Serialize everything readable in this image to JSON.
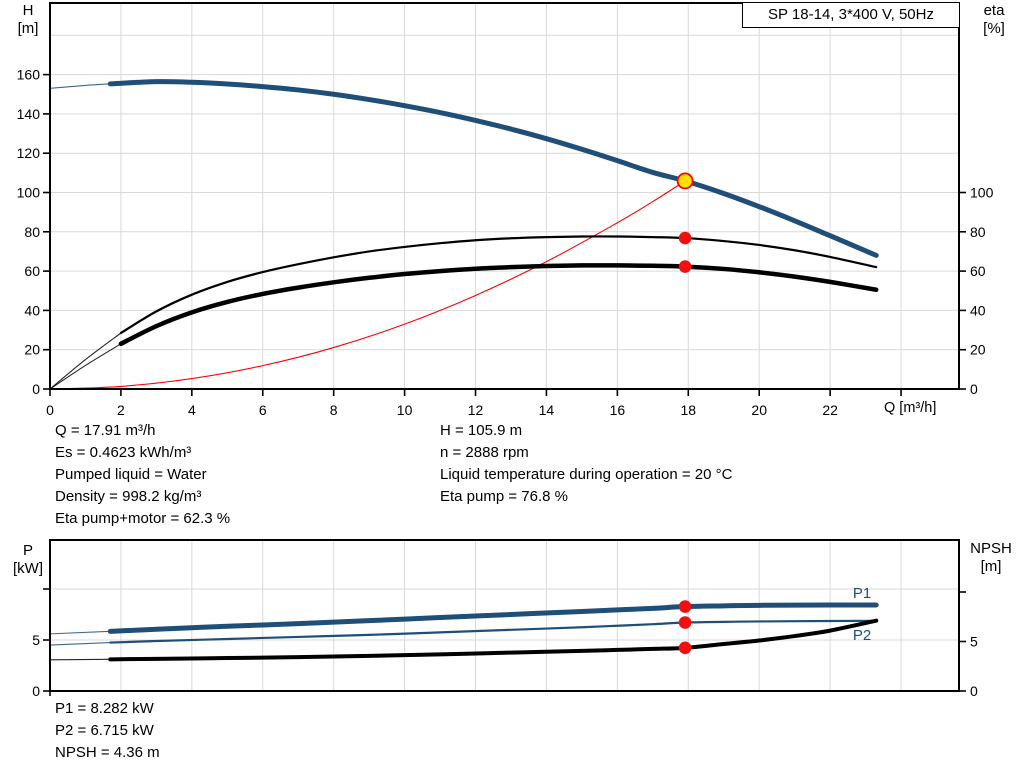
{
  "title_box": "SP 18-14, 3*400 V, 50Hz",
  "top_info": {
    "left": [
      "Q = 17.91 m³/h",
      "Es = 0.4623 kWh/m³",
      "Pumped liquid = Water",
      "Density = 998.2 kg/m³",
      "Eta pump+motor = 62.3 %"
    ],
    "right": [
      "H = 105.9 m",
      "n = 2888 rpm",
      "Liquid temperature during operation = 20 °C",
      "Eta pump = 76.8 %"
    ]
  },
  "bottom_info": [
    "P1 = 8.282 kW",
    "P2 = 6.715 kW",
    "NPSH = 4.36 m"
  ],
  "colors": {
    "curve_blue": "#1f4e79",
    "curve_black": "#000000",
    "system_red": "#ff0000",
    "marker_red": "#f01010",
    "duty_yellow": "#ffe000",
    "grid": "#d9d9d9",
    "axis": "#000000"
  },
  "chart_data": [
    {
      "type": "line",
      "title": "SP 18-14, 3*400 V, 50Hz",
      "xlabel": "Q [m³/h]",
      "ylabel_left": [
        "H",
        "[m]"
      ],
      "ylabel_right": [
        "eta",
        "[%]"
      ],
      "x_ticks": [
        0,
        2,
        4,
        6,
        8,
        10,
        12,
        14,
        16,
        18,
        20,
        22
      ],
      "x_unlabeled_ticks": [
        24
      ],
      "y_left_ticks": [
        0,
        20,
        40,
        60,
        80,
        100,
        120,
        140,
        160
      ],
      "y_left_range": [
        0,
        196
      ],
      "y_right_ticks": [
        0,
        20,
        40,
        60,
        80,
        100
      ],
      "x_range": [
        0,
        25.6
      ],
      "grid": true,
      "series": [
        {
          "name": "system-curve",
          "axis": "left",
          "color": "#ff0000",
          "width": 1.1,
          "lead_until": 0,
          "points": [
            [
              0,
              0
            ],
            [
              2,
              1.3
            ],
            [
              4,
              5.3
            ],
            [
              6,
              11.9
            ],
            [
              8,
              21.1
            ],
            [
              10,
              33
            ],
            [
              12,
              47.6
            ],
            [
              14,
              64.8
            ],
            [
              16,
              84.6
            ],
            [
              17,
              95.4
            ],
            [
              17.91,
              105.9
            ]
          ]
        },
        {
          "name": "eta-pump",
          "axis": "right",
          "color": "#000000",
          "width": 2.2,
          "lead_until": 1.7,
          "points": [
            [
              0,
              0
            ],
            [
              1,
              15
            ],
            [
              2,
              28.5
            ],
            [
              3,
              39.5
            ],
            [
              4,
              48
            ],
            [
              5,
              54.5
            ],
            [
              6,
              59.5
            ],
            [
              7,
              63.5
            ],
            [
              8,
              67
            ],
            [
              9,
              70
            ],
            [
              10,
              72.3
            ],
            [
              11,
              74.2
            ],
            [
              12,
              75.7
            ],
            [
              13,
              76.7
            ],
            [
              14,
              77.3
            ],
            [
              15,
              77.6
            ],
            [
              16,
              77.6
            ],
            [
              17,
              77.3
            ],
            [
              17.91,
              76.8
            ],
            [
              19,
              75.3
            ],
            [
              20,
              73.3
            ],
            [
              21,
              70.6
            ],
            [
              22,
              67.2
            ],
            [
              23.3,
              62
            ]
          ]
        },
        {
          "name": "eta-pump-motor",
          "axis": "right",
          "color": "#000000",
          "width": 4.5,
          "lead_until": 1.7,
          "points": [
            [
              0,
              0
            ],
            [
              1,
              12
            ],
            [
              2,
              23
            ],
            [
              3,
              32
            ],
            [
              4,
              39
            ],
            [
              5,
              44.3
            ],
            [
              6,
              48.4
            ],
            [
              7,
              51.6
            ],
            [
              8,
              54.3
            ],
            [
              9,
              56.6
            ],
            [
              10,
              58.5
            ],
            [
              11,
              60
            ],
            [
              12,
              61.2
            ],
            [
              13,
              62
            ],
            [
              14,
              62.6
            ],
            [
              15,
              62.9
            ],
            [
              16,
              62.9
            ],
            [
              17,
              62.7
            ],
            [
              17.91,
              62.3
            ],
            [
              19,
              61.1
            ],
            [
              20,
              59.4
            ],
            [
              21,
              57.2
            ],
            [
              22,
              54.5
            ],
            [
              23.3,
              50.5
            ]
          ]
        },
        {
          "name": "H-curve",
          "axis": "left",
          "color": "#1f4e79",
          "width": 5,
          "lead_until": 1.7,
          "points": [
            [
              0,
              153
            ],
            [
              1,
              154.5
            ],
            [
              1.7,
              155.3
            ],
            [
              3,
              156.4
            ],
            [
              4,
              156.1
            ],
            [
              5,
              155.2
            ],
            [
              6,
              153.9
            ],
            [
              7,
              152.2
            ],
            [
              8,
              150
            ],
            [
              9,
              147.3
            ],
            [
              10,
              144.2
            ],
            [
              11,
              140.7
            ],
            [
              12,
              136.7
            ],
            [
              13,
              132.3
            ],
            [
              14,
              127.4
            ],
            [
              15,
              122
            ],
            [
              16,
              116.2
            ],
            [
              17,
              110.2
            ],
            [
              17.91,
              105.9
            ],
            [
              19,
              99.5
            ],
            [
              20,
              92.8
            ],
            [
              21,
              85.6
            ],
            [
              22,
              78
            ],
            [
              23.3,
              68
            ]
          ]
        }
      ],
      "markers": [
        {
          "name": "duty-point",
          "q": 17.91,
          "value": 105.9,
          "axis": "left",
          "style": "duty"
        },
        {
          "name": "eta-pump-point",
          "q": 17.91,
          "value": 76.8,
          "axis": "right",
          "style": "dot"
        },
        {
          "name": "eta-pump-motor-point",
          "q": 17.91,
          "value": 62.3,
          "axis": "right",
          "style": "dot"
        }
      ],
      "curve_labels": []
    },
    {
      "type": "line",
      "title": "",
      "xlabel": "",
      "ylabel_left": [
        "P",
        "[kW]"
      ],
      "ylabel_right": [
        "NPSH",
        "[m]"
      ],
      "x_ticks": [],
      "x_unlabeled_ticks": [],
      "y_left_ticks": [
        0,
        5
      ],
      "y_left_unlabeled_ticks": [
        10
      ],
      "y_left_range": [
        0,
        14.8
      ],
      "y_right_ticks": [
        0,
        5
      ],
      "y_right_unlabeled_ticks": [
        10
      ],
      "x_range": [
        0,
        25.6
      ],
      "grid": true,
      "series": [
        {
          "name": "P2",
          "axis": "left",
          "color": "#1f4e79",
          "width": 2.2,
          "lead_until": 1.7,
          "points": [
            [
              0,
              4.5
            ],
            [
              1.7,
              4.75
            ],
            [
              3,
              4.9
            ],
            [
              5,
              5.1
            ],
            [
              7,
              5.3
            ],
            [
              9,
              5.5
            ],
            [
              11,
              5.75
            ],
            [
              13,
              6.0
            ],
            [
              15,
              6.25
            ],
            [
              16,
              6.4
            ],
            [
              17,
              6.55
            ],
            [
              17.91,
              6.715
            ],
            [
              19,
              6.78
            ],
            [
              20,
              6.82
            ],
            [
              22,
              6.86
            ],
            [
              23.3,
              6.88
            ]
          ]
        },
        {
          "name": "P1",
          "axis": "left",
          "color": "#1f4e79",
          "width": 5,
          "lead_until": 1.7,
          "points": [
            [
              0,
              5.6
            ],
            [
              1.7,
              5.85
            ],
            [
              3,
              6.05
            ],
            [
              5,
              6.35
            ],
            [
              7,
              6.6
            ],
            [
              9,
              6.9
            ],
            [
              11,
              7.2
            ],
            [
              13,
              7.5
            ],
            [
              15,
              7.8
            ],
            [
              16,
              7.95
            ],
            [
              17,
              8.1
            ],
            [
              17.91,
              8.282
            ],
            [
              19,
              8.35
            ],
            [
              20,
              8.4
            ],
            [
              22,
              8.43
            ],
            [
              23.3,
              8.43
            ]
          ]
        },
        {
          "name": "NPSH",
          "axis": "right",
          "color": "#000000",
          "width": 4,
          "lead_until": 1.7,
          "points": [
            [
              0,
              3.15
            ],
            [
              1.7,
              3.2
            ],
            [
              3,
              3.25
            ],
            [
              5,
              3.33
            ],
            [
              7,
              3.42
            ],
            [
              9,
              3.55
            ],
            [
              11,
              3.7
            ],
            [
              13,
              3.88
            ],
            [
              15,
              4.05
            ],
            [
              16,
              4.15
            ],
            [
              17,
              4.25
            ],
            [
              17.91,
              4.36
            ],
            [
              19,
              4.75
            ],
            [
              20,
              5.1
            ],
            [
              21,
              5.55
            ],
            [
              22,
              6.1
            ],
            [
              23.3,
              7.1
            ]
          ]
        }
      ],
      "markers": [
        {
          "name": "p1-point",
          "q": 17.91,
          "value": 8.282,
          "axis": "left",
          "style": "dot"
        },
        {
          "name": "p2-point",
          "q": 17.91,
          "value": 6.715,
          "axis": "left",
          "style": "dot"
        },
        {
          "name": "npsh-point",
          "q": 17.91,
          "value": 4.36,
          "axis": "right",
          "style": "dot"
        }
      ],
      "curve_labels": [
        {
          "text": "P1",
          "q": 22.9,
          "value": 9.1,
          "axis": "left",
          "color": "#1f4e79"
        },
        {
          "text": "P2",
          "q": 22.9,
          "value": 5.0,
          "axis": "left",
          "color": "#1f4e79"
        }
      ]
    }
  ]
}
